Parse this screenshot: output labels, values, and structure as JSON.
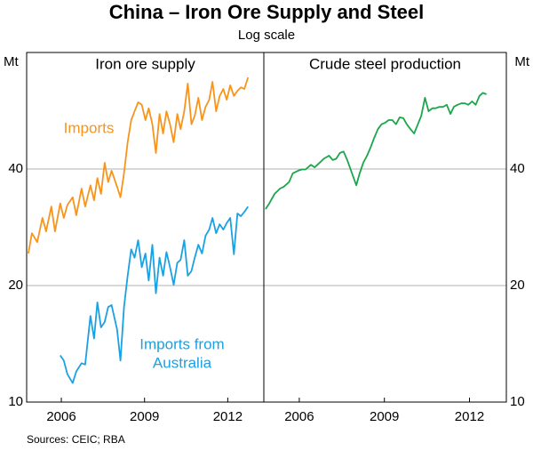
{
  "chart_data": {
    "type": "line",
    "title": "China – Iron Ore Supply and Steel",
    "subtitle": "Log scale",
    "y_label": "Mt",
    "source": "Sources: CEIC; RBA",
    "log_scale": true,
    "grid": true,
    "ylim": [
      10,
      80
    ],
    "yticks": [
      10,
      20,
      40
    ],
    "xlim": [
      2004.75,
      2013.3
    ],
    "xticks": [
      2006,
      2009,
      2012
    ],
    "x": [
      2004.81,
      2004.94,
      2005.13,
      2005.32,
      2005.45,
      2005.64,
      2005.77,
      2005.96,
      2006.09,
      2006.22,
      2006.41,
      2006.54,
      2006.73,
      2006.86,
      2007.05,
      2007.18,
      2007.3,
      2007.43,
      2007.56,
      2007.69,
      2007.81,
      2008.01,
      2008.13,
      2008.26,
      2008.39,
      2008.52,
      2008.64,
      2008.77,
      2008.9,
      2009.03,
      2009.15,
      2009.28,
      2009.41,
      2009.54,
      2009.67,
      2009.79,
      2009.92,
      2010.05,
      2010.18,
      2010.3,
      2010.43,
      2010.56,
      2010.69,
      2010.81,
      2010.94,
      2011.07,
      2011.2,
      2011.33,
      2011.45,
      2011.58,
      2011.71,
      2011.84,
      2011.96,
      2012.09,
      2012.22,
      2012.35,
      2012.47,
      2012.6,
      2012.73
    ],
    "panels": [
      {
        "title": "Iron ore supply",
        "series": [
          {
            "name": "Imports",
            "label_lines": [
              "Imports"
            ],
            "color": "#f7941d",
            "values": [
              24.2,
              27.3,
              25.9,
              29.9,
              27.6,
              32.0,
              27.6,
              32.6,
              29.9,
              32.3,
              33.8,
              30.4,
              35.6,
              32.0,
              36.3,
              33.2,
              37.9,
              34.5,
              41.5,
              37.0,
              39.6,
              36.0,
              33.8,
              39.0,
              46.9,
              53.5,
              56.4,
              59.5,
              58.6,
              53.5,
              57.4,
              52.2,
              44.0,
              55.5,
              49.4,
              56.4,
              52.2,
              46.9,
              55.5,
              50.7,
              56.4,
              66.5,
              52.2,
              54.9,
              61.1,
              53.5,
              57.9,
              60.4,
              67.2,
              56.4,
              61.8,
              64.4,
              60.4,
              65.8,
              61.8,
              63.7,
              65.0,
              64.4,
              69.0
            ]
          },
          {
            "name": "Imports from Australia",
            "label_lines": [
              "Imports from",
              "Australia"
            ],
            "color": "#1ba1e2",
            "values": [
              null,
              null,
              null,
              null,
              null,
              null,
              null,
              13.2,
              12.8,
              11.8,
              11.2,
              12.0,
              12.6,
              12.5,
              16.7,
              14.6,
              18.1,
              15.6,
              16.1,
              17.6,
              17.8,
              15.4,
              12.8,
              17.6,
              21.2,
              24.8,
              23.6,
              26.2,
              22.3,
              24.2,
              20.6,
              25.5,
              19.1,
              23.6,
              21.2,
              24.4,
              22.3,
              20.1,
              22.9,
              23.3,
              26.2,
              21.2,
              21.8,
              23.6,
              25.5,
              24.2,
              26.9,
              27.9,
              29.9,
              27.3,
              28.8,
              27.9,
              29.0,
              29.9,
              24.1,
              30.7,
              30.2,
              31.0,
              32.0
            ]
          }
        ]
      },
      {
        "title": "Crude steel production",
        "series": [
          {
            "name": "Crude steel production",
            "color": "#1aa64a",
            "values": [
              31.5,
              32.6,
              34.5,
              35.6,
              36.0,
              37.0,
              39.0,
              39.6,
              39.9,
              39.9,
              41.0,
              40.4,
              41.6,
              42.5,
              43.3,
              42.2,
              42.5,
              44.0,
              44.4,
              42.2,
              39.9,
              36.3,
              39.0,
              41.6,
              43.3,
              45.6,
              48.1,
              50.7,
              52.2,
              52.7,
              53.5,
              53.5,
              52.2,
              54.4,
              54.1,
              52.2,
              50.7,
              49.4,
              52.2,
              54.9,
              61.1,
              56.4,
              57.4,
              57.4,
              57.9,
              57.9,
              58.6,
              55.5,
              57.9,
              58.6,
              59.1,
              59.1,
              58.6,
              59.8,
              58.6,
              61.8,
              62.9,
              62.4,
              null
            ]
          }
        ]
      }
    ]
  }
}
